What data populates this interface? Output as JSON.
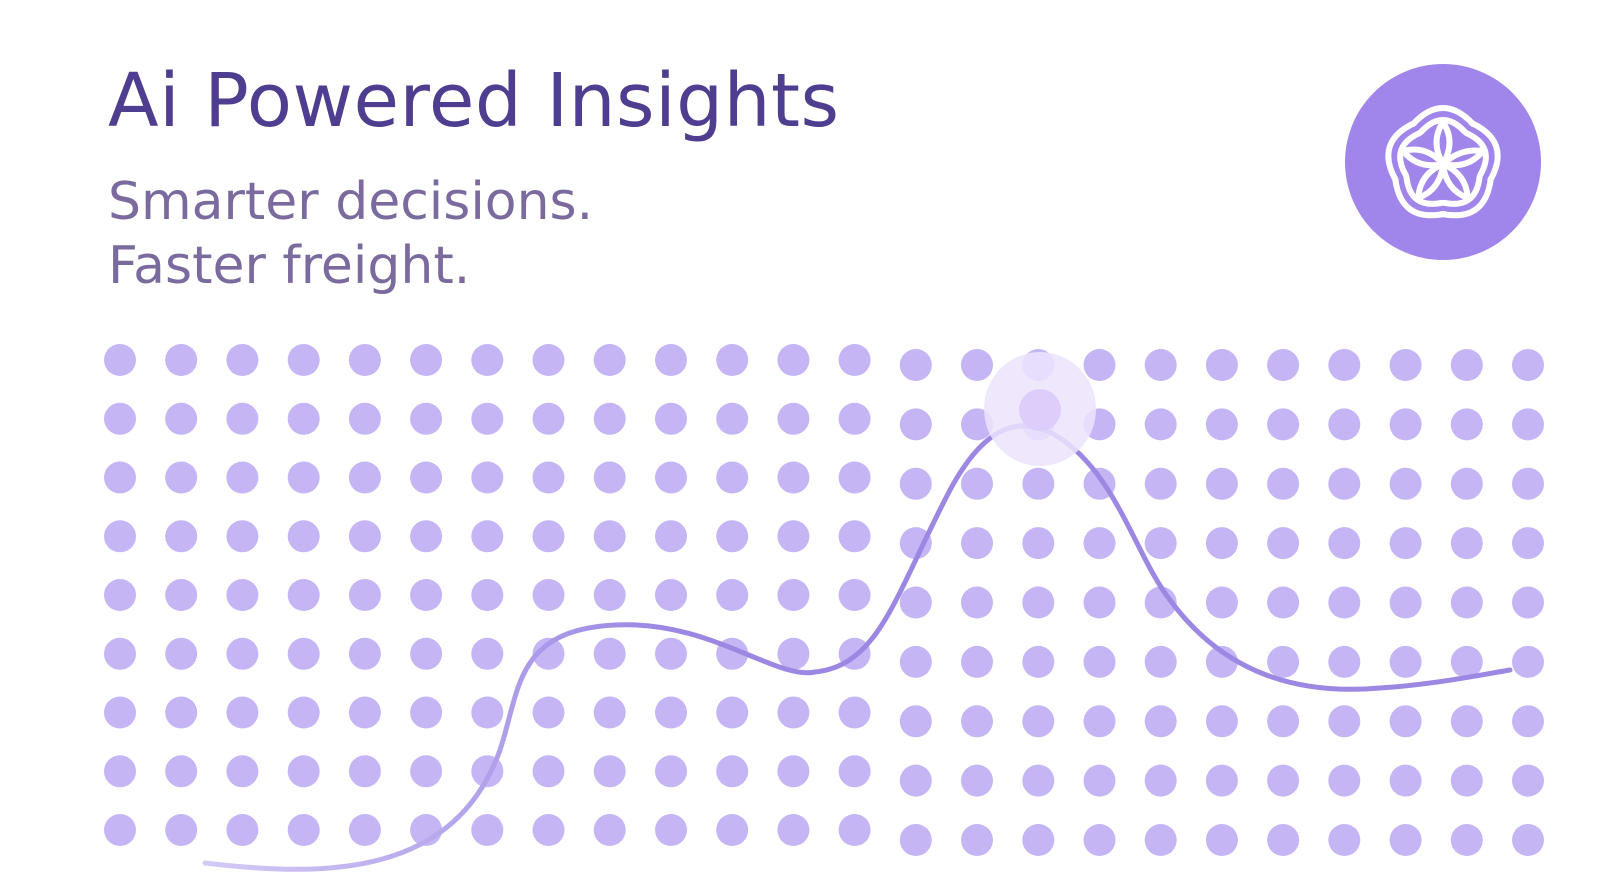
{
  "hero": {
    "title": "Ai Powered Insights",
    "tagline_line1": "Smarter decisions.",
    "tagline_line2": "Faster freight."
  },
  "logo": {
    "icon": "lotus-flower-icon",
    "background_color": "#a085ea"
  },
  "colors": {
    "title": "#4f3d8f",
    "tagline": "#7b6a9e",
    "dots": "#c5b5f5",
    "curve": "#9c88e3",
    "curve_faded": "#d4caf6",
    "highlight_halo": "#ece4fd",
    "highlight_dot": "#dccdfb"
  },
  "dot_grid": {
    "columns": 24,
    "rows": 9
  }
}
